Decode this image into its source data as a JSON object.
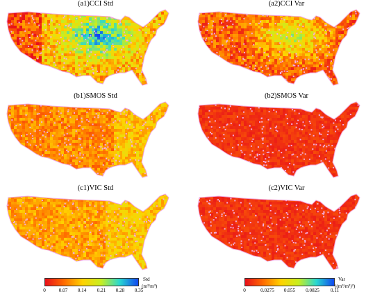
{
  "panels": [
    {
      "id": "a1",
      "title": "(a1)CCI Std",
      "scheme": "std_wet"
    },
    {
      "id": "a2",
      "title": "(a2)CCI Var",
      "scheme": "var_mid"
    },
    {
      "id": "b1",
      "title": "(b1)SMOS Std",
      "scheme": "std_dry"
    },
    {
      "id": "b2",
      "title": "(b2)SMOS Var",
      "scheme": "var_dry"
    },
    {
      "id": "c1",
      "title": "(c1)VIC Std",
      "scheme": "std_mid"
    },
    {
      "id": "c2",
      "title": "(c2)VIC Var",
      "scheme": "var_dry"
    }
  ],
  "colorbars": {
    "std": {
      "label": "Std",
      "unit": "(m³/m³)",
      "ticks": [
        "0",
        "0.07",
        "0.14",
        "0.21",
        "0.28",
        "0.35"
      ],
      "range": [
        0,
        0.35
      ]
    },
    "var": {
      "label": "Var",
      "unit": "((m³/m³)²)",
      "ticks": [
        "0",
        "0.0275",
        "0.055",
        "0.0825",
        "0.11"
      ],
      "range": [
        0,
        0.11
      ]
    }
  },
  "colors": {
    "ramp": [
      "#e8101a",
      "#ff6a00",
      "#ffd200",
      "#c8ee20",
      "#28d8d0",
      "#1048f0"
    ],
    "speckle": "#f2aee0"
  }
}
